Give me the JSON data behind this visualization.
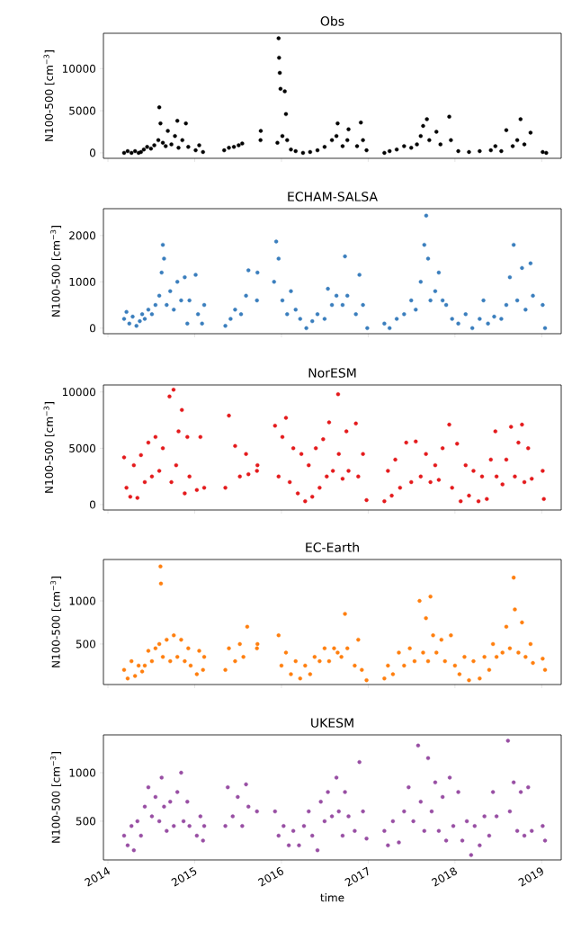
{
  "chart_data": [
    {
      "type": "scatter",
      "title": "Obs",
      "ylabel": "N100-500  [cm$^{−3}$]",
      "color": "#000000",
      "tick_labels": "y",
      "xlim": [
        "2013-12-13",
        "2019-03-24"
      ],
      "xticks": [
        "2014",
        "2015",
        "2016",
        "2017",
        "2018",
        "2019"
      ],
      "ylim": [
        -650,
        14200
      ],
      "yticks": [
        0,
        5000,
        10000
      ],
      "x": [
        "2014-03-10",
        "2014-03-25",
        "2014-04-10",
        "2014-04-25",
        "2014-05-10",
        "2014-05-20",
        "2014-06-01",
        "2014-06-15",
        "2014-07-01",
        "2014-07-15",
        "2014-08-01",
        "2014-08-05",
        "2014-08-10",
        "2014-08-20",
        "2014-09-01",
        "2014-09-10",
        "2014-09-25",
        "2014-10-10",
        "2014-10-20",
        "2014-10-25",
        "2014-11-10",
        "2014-11-25",
        "2014-12-05",
        "2015-01-05",
        "2015-01-20",
        "2015-02-05",
        "2015-05-05",
        "2015-05-25",
        "2015-06-15",
        "2015-07-05",
        "2015-07-20",
        "2015-10-05",
        "2015-10-06",
        "2015-12-15",
        "2015-12-20",
        "2015-12-22",
        "2015-12-25",
        "2015-12-28",
        "2016-01-05",
        "2016-01-15",
        "2016-01-20",
        "2016-01-25",
        "2016-02-10",
        "2016-03-01",
        "2016-04-01",
        "2016-05-01",
        "2016-06-01",
        "2016-07-01",
        "2016-08-01",
        "2016-08-20",
        "2016-08-25",
        "2016-09-15",
        "2016-10-05",
        "2016-10-10",
        "2016-11-15",
        "2016-12-01",
        "2016-12-10",
        "2016-12-25",
        "2017-03-10",
        "2017-04-01",
        "2017-05-01",
        "2017-06-01",
        "2017-07-01",
        "2017-07-25",
        "2017-08-10",
        "2017-08-20",
        "2017-09-05",
        "2017-09-15",
        "2017-10-15",
        "2017-11-01",
        "2017-12-08",
        "2017-12-15",
        "2018-01-15",
        "2018-03-01",
        "2018-04-15",
        "2018-06-01",
        "2018-06-20",
        "2018-07-15",
        "2018-08-05",
        "2018-09-01",
        "2018-09-20",
        "2018-10-04",
        "2018-10-20",
        "2018-11-15",
        "2019-01-05",
        "2019-01-20"
      ],
      "values": [
        0,
        200,
        0,
        200,
        0,
        100,
        400,
        700,
        500,
        900,
        1500,
        5400,
        3500,
        1200,
        800,
        2600,
        1000,
        2000,
        3800,
        600,
        1500,
        3500,
        700,
        300,
        900,
        100,
        300,
        600,
        700,
        900,
        1100,
        1500,
        2600,
        1200,
        13600,
        11300,
        9500,
        7600,
        2000,
        7300,
        4600,
        1500,
        400,
        200,
        0,
        100,
        300,
        700,
        1500,
        2000,
        3500,
        800,
        1500,
        2800,
        800,
        3600,
        1500,
        300,
        0,
        200,
        400,
        800,
        600,
        1000,
        2000,
        3200,
        4000,
        1500,
        2500,
        1000,
        4300,
        1500,
        200,
        100,
        200,
        300,
        800,
        200,
        2700,
        800,
        1500,
        4000,
        1000,
        2400,
        100,
        0
      ]
    },
    {
      "type": "scatter",
      "title": "ECHAM-SALSA",
      "ylabel": "N100-500  [cm$^{−3}$]",
      "color": "#3a7ebd",
      "tick_labels": "y",
      "xlim": [
        "2013-12-13",
        "2019-03-24"
      ],
      "xticks": [
        "2014",
        "2015",
        "2016",
        "2017",
        "2018",
        "2019"
      ],
      "ylim": [
        -120,
        2580
      ],
      "yticks": [
        0,
        1000,
        2000
      ],
      "x": [
        "2014-03-10",
        "2014-03-20",
        "2014-04-01",
        "2014-04-15",
        "2014-05-01",
        "2014-05-15",
        "2014-05-25",
        "2014-06-05",
        "2014-06-20",
        "2014-07-05",
        "2014-07-20",
        "2014-08-05",
        "2014-08-15",
        "2014-08-20",
        "2014-08-25",
        "2014-09-05",
        "2014-09-20",
        "2014-10-05",
        "2014-10-20",
        "2014-11-05",
        "2014-11-20",
        "2014-12-01",
        "2014-12-10",
        "2015-01-05",
        "2015-01-15",
        "2015-02-01",
        "2015-02-10",
        "2015-05-10",
        "2015-06-01",
        "2015-06-20",
        "2015-07-15",
        "2015-08-05",
        "2015-08-15",
        "2015-09-20",
        "2015-09-22",
        "2015-12-01",
        "2015-12-10",
        "2015-12-20",
        "2016-01-05",
        "2016-01-25",
        "2016-02-10",
        "2016-03-01",
        "2016-03-20",
        "2016-04-15",
        "2016-05-10",
        "2016-06-01",
        "2016-07-01",
        "2016-07-15",
        "2016-08-01",
        "2016-08-20",
        "2016-09-15",
        "2016-09-25",
        "2016-10-05",
        "2016-11-10",
        "2016-11-25",
        "2016-12-10",
        "2016-12-28",
        "2017-03-10",
        "2017-04-01",
        "2017-05-01",
        "2017-06-01",
        "2017-07-01",
        "2017-07-20",
        "2017-08-10",
        "2017-08-25",
        "2017-09-02",
        "2017-09-10",
        "2017-09-20",
        "2017-10-10",
        "2017-10-25",
        "2017-11-10",
        "2017-11-25",
        "2017-12-20",
        "2018-01-15",
        "2018-02-15",
        "2018-03-15",
        "2018-04-15",
        "2018-05-01",
        "2018-05-20",
        "2018-06-15",
        "2018-07-15",
        "2018-08-05",
        "2018-08-20",
        "2018-09-05",
        "2018-09-20",
        "2018-10-10",
        "2018-10-25",
        "2018-11-15",
        "2018-11-25",
        "2019-01-05",
        "2019-01-15"
      ],
      "values": [
        200,
        350,
        100,
        250,
        50,
        150,
        300,
        200,
        400,
        300,
        500,
        700,
        1200,
        1800,
        1500,
        500,
        800,
        400,
        1000,
        600,
        1100,
        100,
        600,
        1150,
        300,
        100,
        500,
        50,
        200,
        400,
        300,
        700,
        1250,
        600,
        1200,
        1000,
        1870,
        1500,
        600,
        300,
        800,
        400,
        200,
        0,
        150,
        300,
        200,
        850,
        500,
        700,
        500,
        1550,
        700,
        300,
        1150,
        500,
        0,
        100,
        0,
        200,
        300,
        600,
        400,
        1000,
        1800,
        2430,
        1500,
        600,
        800,
        1200,
        600,
        500,
        200,
        100,
        300,
        0,
        200,
        600,
        100,
        250,
        200,
        500,
        1100,
        1800,
        600,
        1300,
        400,
        1400,
        700,
        500,
        0
      ]
    },
    {
      "type": "scatter",
      "title": "NorESM",
      "ylabel": "N100-500  [cm$^{−3}$]",
      "color": "#e41a1c",
      "tick_labels": "y",
      "xlim": [
        "2013-12-13",
        "2019-03-24"
      ],
      "xticks": [
        "2014",
        "2015",
        "2016",
        "2017",
        "2018",
        "2019"
      ],
      "ylim": [
        -480,
        10620
      ],
      "yticks": [
        0,
        5000,
        10000
      ],
      "x": [
        "2014-03-10",
        "2014-03-20",
        "2014-04-05",
        "2014-04-20",
        "2014-05-05",
        "2014-05-20",
        "2014-06-05",
        "2014-06-20",
        "2014-07-05",
        "2014-07-20",
        "2014-08-05",
        "2014-08-20",
        "2014-09-17",
        "2014-09-25",
        "2014-10-04",
        "2014-10-15",
        "2014-10-25",
        "2014-11-08",
        "2014-11-20",
        "2014-12-01",
        "2014-12-10",
        "2015-01-10",
        "2015-01-25",
        "2015-02-10",
        "2015-05-10",
        "2015-05-25",
        "2015-06-20",
        "2015-07-10",
        "2015-08-05",
        "2015-08-15",
        "2015-09-20",
        "2015-09-22",
        "2015-12-05",
        "2015-12-20",
        "2016-01-05",
        "2016-01-20",
        "2016-02-05",
        "2016-02-20",
        "2016-03-10",
        "2016-03-25",
        "2016-04-10",
        "2016-04-25",
        "2016-05-10",
        "2016-05-25",
        "2016-06-10",
        "2016-06-25",
        "2016-07-10",
        "2016-07-20",
        "2016-08-05",
        "2016-08-27",
        "2016-08-30",
        "2016-09-15",
        "2016-10-01",
        "2016-10-10",
        "2016-11-10",
        "2016-11-20",
        "2016-12-10",
        "2016-12-25",
        "2017-03-10",
        "2017-03-25",
        "2017-04-10",
        "2017-04-25",
        "2017-05-15",
        "2017-06-10",
        "2017-07-01",
        "2017-07-20",
        "2017-08-10",
        "2017-09-01",
        "2017-09-20",
        "2017-10-10",
        "2017-10-25",
        "2017-11-10",
        "2017-12-08",
        "2017-12-20",
        "2018-01-10",
        "2018-01-25",
        "2018-02-15",
        "2018-03-01",
        "2018-03-20",
        "2018-04-10",
        "2018-04-25",
        "2018-05-15",
        "2018-06-01",
        "2018-06-20",
        "2018-06-25",
        "2018-07-20",
        "2018-08-05",
        "2018-08-25",
        "2018-09-10",
        "2018-09-25",
        "2018-10-10",
        "2018-10-20",
        "2018-11-05",
        "2018-11-20",
        "2019-01-05",
        "2019-01-10"
      ],
      "values": [
        4200,
        1500,
        700,
        3500,
        600,
        4400,
        2000,
        5500,
        2500,
        6000,
        3000,
        5000,
        9600,
        2000,
        10200,
        3500,
        6500,
        8400,
        1000,
        6000,
        2500,
        1300,
        6000,
        1500,
        1500,
        7900,
        5200,
        2500,
        4500,
        2700,
        3000,
        3500,
        7000,
        2500,
        6000,
        7700,
        2000,
        5000,
        1000,
        4500,
        300,
        3500,
        700,
        5000,
        1500,
        5800,
        2500,
        7300,
        3000,
        9800,
        4500,
        2300,
        6500,
        3000,
        7200,
        2500,
        4500,
        400,
        300,
        3000,
        800,
        4000,
        1500,
        5500,
        2000,
        5600,
        2500,
        4500,
        2000,
        3500,
        2200,
        5000,
        7100,
        1500,
        5400,
        300,
        3500,
        800,
        3000,
        300,
        2500,
        500,
        4000,
        6500,
        2500,
        1800,
        4000,
        6900,
        2500,
        5500,
        7100,
        2000,
        5000,
        2300,
        3000,
        500
      ]
    },
    {
      "type": "scatter",
      "title": "EC-Earth",
      "ylabel": "N100-500  [cm$^{−3}$]",
      "color": "#ff7f0e",
      "tick_labels": "y",
      "xlim": [
        "2013-12-13",
        "2019-03-24"
      ],
      "xticks": [
        "2014",
        "2015",
        "2016",
        "2017",
        "2018",
        "2019"
      ],
      "ylim": [
        30,
        1480
      ],
      "yticks": [
        500,
        1000
      ],
      "x": [
        "2014-03-10",
        "2014-03-25",
        "2014-04-10",
        "2014-04-25",
        "2014-05-10",
        "2014-05-25",
        "2014-06-05",
        "2014-06-20",
        "2014-07-05",
        "2014-07-20",
        "2014-08-05",
        "2014-08-10",
        "2014-08-12",
        "2014-08-20",
        "2014-09-05",
        "2014-09-20",
        "2014-10-05",
        "2014-10-20",
        "2014-11-05",
        "2014-11-20",
        "2014-12-05",
        "2014-12-15",
        "2015-01-10",
        "2015-01-20",
        "2015-02-05",
        "2015-02-10",
        "2015-05-10",
        "2015-05-25",
        "2015-06-20",
        "2015-07-10",
        "2015-07-25",
        "2015-08-10",
        "2015-09-20",
        "2015-09-22",
        "2015-12-20",
        "2016-01-01",
        "2016-01-20",
        "2016-02-10",
        "2016-03-01",
        "2016-03-20",
        "2016-04-10",
        "2016-05-01",
        "2016-05-20",
        "2016-06-10",
        "2016-07-01",
        "2016-07-20",
        "2016-08-10",
        "2016-08-25",
        "2016-09-10",
        "2016-09-25",
        "2016-10-05",
        "2016-11-05",
        "2016-11-20",
        "2016-12-05",
        "2016-12-25",
        "2017-03-10",
        "2017-03-25",
        "2017-04-15",
        "2017-05-10",
        "2017-06-01",
        "2017-06-25",
        "2017-07-15",
        "2017-08-05",
        "2017-08-20",
        "2017-09-01",
        "2017-09-10",
        "2017-09-20",
        "2017-10-01",
        "2017-10-15",
        "2017-11-05",
        "2017-11-20",
        "2017-12-15",
        "2018-01-01",
        "2018-01-20",
        "2018-02-10",
        "2018-03-01",
        "2018-03-20",
        "2018-04-15",
        "2018-05-05",
        "2018-05-25",
        "2018-06-10",
        "2018-06-25",
        "2018-07-20",
        "2018-08-05",
        "2018-08-20",
        "2018-09-05",
        "2018-09-10",
        "2018-09-25",
        "2018-10-10",
        "2018-10-25",
        "2018-11-15",
        "2018-11-25",
        "2019-01-05",
        "2019-01-15"
      ],
      "values": [
        200,
        100,
        300,
        130,
        250,
        180,
        250,
        420,
        300,
        450,
        500,
        1400,
        1200,
        350,
        550,
        300,
        600,
        350,
        550,
        300,
        450,
        250,
        150,
        420,
        200,
        350,
        200,
        450,
        300,
        500,
        350,
        700,
        450,
        500,
        600,
        250,
        400,
        150,
        300,
        100,
        250,
        150,
        350,
        300,
        450,
        300,
        450,
        400,
        350,
        850,
        450,
        250,
        550,
        200,
        80,
        100,
        250,
        150,
        400,
        250,
        450,
        300,
        1000,
        400,
        800,
        300,
        1050,
        600,
        400,
        550,
        300,
        600,
        250,
        150,
        350,
        80,
        300,
        100,
        350,
        200,
        500,
        350,
        400,
        700,
        450,
        1270,
        900,
        400,
        750,
        350,
        500,
        280,
        330,
        200
      ]
    },
    {
      "type": "scatter",
      "title": "UKESM",
      "ylabel": "N100-500  [cm$^{−3}$]",
      "xlabel": "time",
      "color": "#984ea3",
      "xlim": [
        "2013-12-13",
        "2019-03-24"
      ],
      "xticks": [
        "2014",
        "2015",
        "2016",
        "2017",
        "2018",
        "2019"
      ],
      "ylim": [
        100,
        1390
      ],
      "yticks": [
        500,
        1000
      ],
      "x": [
        "2014-03-10",
        "2014-03-25",
        "2014-04-10",
        "2014-04-20",
        "2014-05-05",
        "2014-05-20",
        "2014-06-05",
        "2014-06-20",
        "2014-07-05",
        "2014-07-20",
        "2014-08-05",
        "2014-08-15",
        "2014-08-25",
        "2014-09-05",
        "2014-09-20",
        "2014-10-05",
        "2014-10-20",
        "2014-11-05",
        "2014-11-15",
        "2014-12-01",
        "2014-12-10",
        "2015-01-10",
        "2015-01-25",
        "2015-02-05",
        "2015-02-10",
        "2015-05-10",
        "2015-05-20",
        "2015-06-10",
        "2015-07-01",
        "2015-07-20",
        "2015-08-05",
        "2015-08-15",
        "2015-09-20",
        "2015-12-05",
        "2015-12-20",
        "2016-01-10",
        "2016-02-01",
        "2016-02-20",
        "2016-03-15",
        "2016-04-05",
        "2016-04-25",
        "2016-05-10",
        "2016-06-01",
        "2016-06-15",
        "2016-07-01",
        "2016-07-15",
        "2016-08-01",
        "2016-08-20",
        "2016-08-30",
        "2016-09-15",
        "2016-09-25",
        "2016-10-10",
        "2016-11-05",
        "2016-11-25",
        "2016-12-10",
        "2016-12-25",
        "2017-03-10",
        "2017-03-25",
        "2017-04-15",
        "2017-05-10",
        "2017-06-01",
        "2017-06-20",
        "2017-07-10",
        "2017-07-30",
        "2017-08-10",
        "2017-08-25",
        "2017-09-10",
        "2017-09-25",
        "2017-10-10",
        "2017-10-25",
        "2017-11-10",
        "2017-11-25",
        "2017-12-10",
        "2017-12-25",
        "2018-01-15",
        "2018-02-01",
        "2018-02-20",
        "2018-03-10",
        "2018-03-25",
        "2018-04-15",
        "2018-05-05",
        "2018-05-25",
        "2018-06-10",
        "2018-06-25",
        "2018-08-12",
        "2018-08-20",
        "2018-09-05",
        "2018-09-20",
        "2018-10-05",
        "2018-10-20",
        "2018-11-05",
        "2018-11-20",
        "2019-01-05",
        "2019-01-15"
      ],
      "values": [
        350,
        250,
        450,
        200,
        500,
        350,
        650,
        850,
        550,
        750,
        500,
        950,
        650,
        400,
        700,
        450,
        800,
        1000,
        500,
        700,
        450,
        350,
        550,
        300,
        450,
        450,
        850,
        550,
        750,
        450,
        880,
        650,
        600,
        600,
        350,
        450,
        250,
        400,
        250,
        450,
        600,
        350,
        200,
        700,
        500,
        800,
        550,
        950,
        600,
        350,
        800,
        550,
        400,
        1110,
        600,
        320,
        400,
        250,
        500,
        280,
        600,
        850,
        500,
        1280,
        700,
        400,
        1150,
        600,
        900,
        400,
        750,
        300,
        950,
        450,
        800,
        300,
        500,
        150,
        450,
        250,
        550,
        350,
        800,
        550,
        1330,
        600,
        900,
        400,
        800,
        350,
        850,
        400,
        450,
        300
      ]
    }
  ]
}
